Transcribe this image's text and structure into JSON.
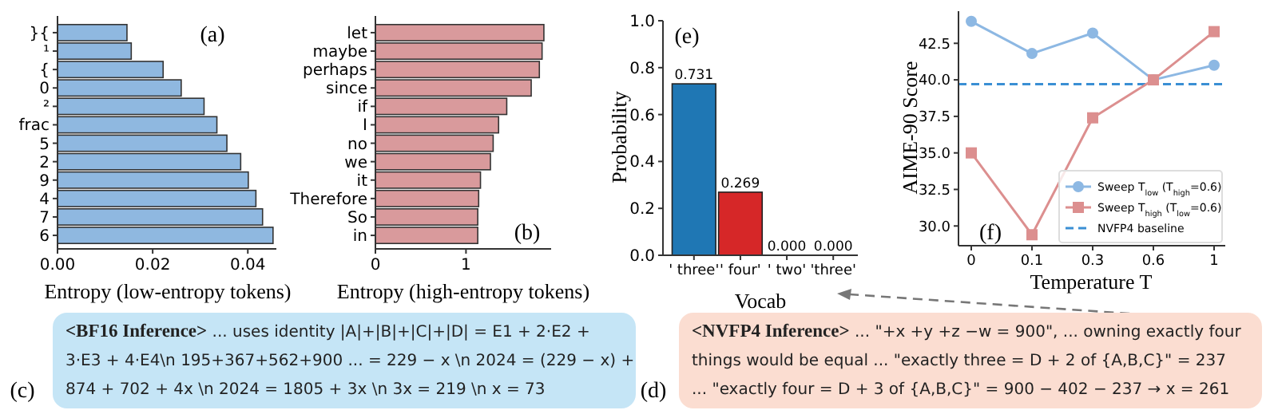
{
  "chart_data": [
    {
      "type": "bar",
      "orientation": "horizontal",
      "title": "(a)",
      "xlabel": "Entropy (low-entropy tokens)",
      "categories": [
        "}{",
        "¹",
        "{",
        "0",
        "²",
        "frac",
        "5",
        "2",
        "9",
        "4",
        "7",
        "6"
      ],
      "values": [
        0.0146,
        0.0155,
        0.0222,
        0.026,
        0.0308,
        0.0335,
        0.0356,
        0.0385,
        0.0401,
        0.0417,
        0.0431,
        0.0453
      ],
      "color": "#8fb8e0",
      "xlim": [
        0,
        0.046
      ],
      "xticks": [
        {
          "value": 0,
          "label": "0.00"
        },
        {
          "value": 0.02,
          "label": "0.02"
        },
        {
          "value": 0.04,
          "label": "0.04"
        }
      ]
    },
    {
      "type": "bar",
      "orientation": "horizontal",
      "title": "(b)",
      "xlabel": "Entropy (high-entropy tokens)",
      "categories": [
        "let",
        "maybe",
        "perhaps",
        "since",
        "if",
        "I",
        "no",
        "we",
        "it",
        "Therefore",
        "So",
        "in"
      ],
      "values": [
        1.86,
        1.84,
        1.81,
        1.72,
        1.45,
        1.36,
        1.3,
        1.27,
        1.16,
        1.14,
        1.13,
        1.13
      ],
      "color": "#d99a9c",
      "xlim": [
        0,
        1.94
      ],
      "xticks": [
        0,
        1
      ]
    },
    {
      "type": "bar",
      "title": "(e)",
      "xlabel": "Vocab",
      "ylabel": "Probability",
      "categories": [
        "' three'",
        "' four'",
        "' two'",
        "'three'"
      ],
      "values": [
        0.731,
        0.269,
        0,
        0
      ],
      "colors": [
        "#1f77b4",
        "#d62728",
        "#2ca02c",
        "#9467bd"
      ],
      "value_labels": [
        "0.731",
        "0.269",
        "0.000",
        "0.000"
      ],
      "ylim": [
        0,
        1
      ],
      "yticks": [
        {
          "value": 0,
          "label": "0.0"
        },
        0.2,
        0.4,
        0.6,
        0.8,
        {
          "value": 1,
          "label": "1.0"
        }
      ]
    },
    {
      "type": "line",
      "title": "(f)",
      "xlabel": "Temperature T",
      "ylabel": "AIME-90 Score",
      "categories": [
        "0",
        "0.1",
        "0.3",
        "0.6",
        "1"
      ],
      "series": [
        {
          "name": "Sweep T$_{low}$ (T$_{high}$=0.6)",
          "color": "#8db8e3",
          "marker": "circle",
          "values": [
            44.0,
            41.8,
            43.2,
            40.0,
            41.0
          ]
        },
        {
          "name": "Sweep T$_{high}$ (T$_{low}$=0.6)",
          "color": "#dc8f8f",
          "marker": "square",
          "values": [
            35.0,
            29.4,
            37.4,
            40.0,
            43.3
          ]
        }
      ],
      "ref_lines": [
        {
          "axis": "y",
          "value": 39.7,
          "label": "NVFP4 baseline",
          "color": "#3a8fd4",
          "line_style": "dashed"
        }
      ],
      "legend": "bottom right",
      "ylim": [
        28.65,
        44.7
      ],
      "yticks": [
        {
          "value": 30,
          "label": "30.0"
        },
        32.5,
        {
          "value": 35,
          "label": "35.0"
        },
        37.5,
        {
          "value": 40,
          "label": "40.0"
        },
        42.5
      ]
    },
    {
      "type": "other",
      "title": "(c)",
      "annotations": [
        "<BF16 Inference>",
        "... uses identity  |A|+|B|+|C|+|D| = E1 + 2·E2 +",
        "3·E3 + 4·E4\\n 195+367+562+900 ... = 229 − x \\n 2024 = (229 − x) +",
        "874 + 702 + 4x \\n 2024 = 1805 + 3x \\n 3x = 219 \\n x = 73"
      ]
    },
    {
      "type": "other",
      "title": "(d)",
      "annotations": [
        "<NVFP4 Inference>",
        "... \"+x +y +z −w = 900\", ... owning exactly four",
        "things would be equal ... \"exactly three = D + 2 of {A,B,C}\" = 237",
        "... \"exactly four = D + 3 of {A,B,C}\" = 900 − 402 − 237 → x = 261"
      ]
    }
  ]
}
